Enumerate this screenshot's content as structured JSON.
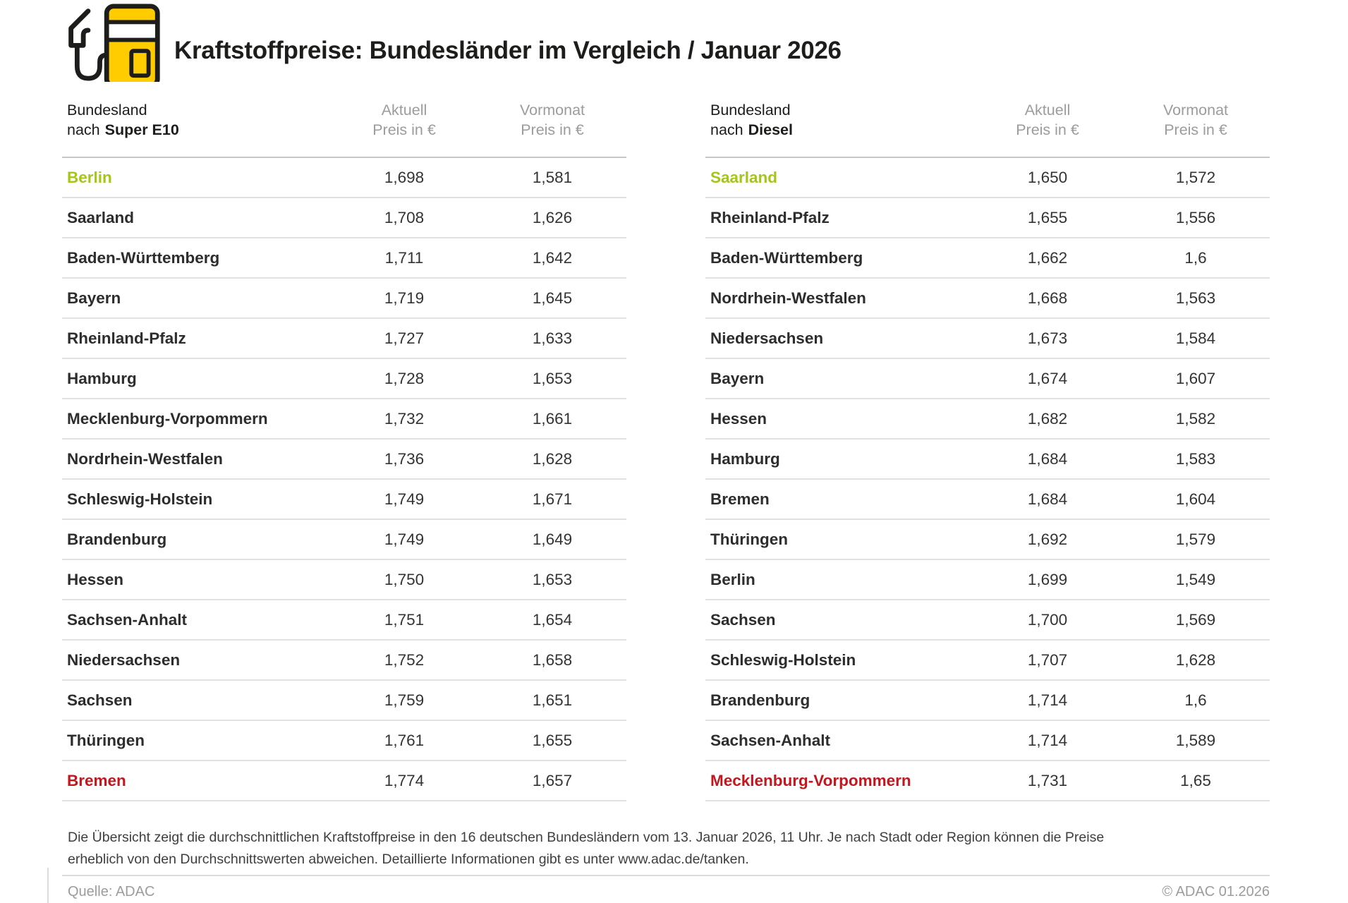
{
  "header": {
    "title": "Kraftstoffpreise: Bundesländer im Vergleich / Januar 2026"
  },
  "icons": {
    "brand": "fuel-pump-icon"
  },
  "columns": {
    "current": {
      "line1": "Aktuell",
      "line2": "Preis in €"
    },
    "previous": {
      "line1": "Vormonat",
      "line2": "Preis in €"
    }
  },
  "chart_data": [
    {
      "type": "table",
      "title": "Bundesland nach Super E10",
      "row_header_line1": "Bundesland",
      "row_header_prefix": "nach",
      "fuel": "Super E10",
      "columns": [
        "Bundesland",
        "Aktuell Preis in €",
        "Vormonat Preis in €"
      ],
      "rows": [
        {
          "name": "Berlin",
          "current": "1,698",
          "previous": "1,581",
          "highlight": "green"
        },
        {
          "name": "Saarland",
          "current": "1,708",
          "previous": "1,626",
          "highlight": null
        },
        {
          "name": "Baden-Württemberg",
          "current": "1,711",
          "previous": "1,642",
          "highlight": null
        },
        {
          "name": "Bayern",
          "current": "1,719",
          "previous": "1,645",
          "highlight": null
        },
        {
          "name": "Rheinland-Pfalz",
          "current": "1,727",
          "previous": "1,633",
          "highlight": null
        },
        {
          "name": "Hamburg",
          "current": "1,728",
          "previous": "1,653",
          "highlight": null
        },
        {
          "name": "Mecklenburg-Vorpommern",
          "current": "1,732",
          "previous": "1,661",
          "highlight": null
        },
        {
          "name": "Nordrhein-Westfalen",
          "current": "1,736",
          "previous": "1,628",
          "highlight": null
        },
        {
          "name": "Schleswig-Holstein",
          "current": "1,749",
          "previous": "1,671",
          "highlight": null
        },
        {
          "name": "Brandenburg",
          "current": "1,749",
          "previous": "1,649",
          "highlight": null
        },
        {
          "name": "Hessen",
          "current": "1,750",
          "previous": "1,653",
          "highlight": null
        },
        {
          "name": "Sachsen-Anhalt",
          "current": "1,751",
          "previous": "1,654",
          "highlight": null
        },
        {
          "name": "Niedersachsen",
          "current": "1,752",
          "previous": "1,658",
          "highlight": null
        },
        {
          "name": "Sachsen",
          "current": "1,759",
          "previous": "1,651",
          "highlight": null
        },
        {
          "name": "Thüringen",
          "current": "1,761",
          "previous": "1,655",
          "highlight": null
        },
        {
          "name": "Bremen",
          "current": "1,774",
          "previous": "1,657",
          "highlight": "red"
        }
      ]
    },
    {
      "type": "table",
      "title": "Bundesland nach Diesel",
      "row_header_line1": "Bundesland",
      "row_header_prefix": "nach",
      "fuel": "Diesel",
      "columns": [
        "Bundesland",
        "Aktuell Preis in €",
        "Vormonat Preis in €"
      ],
      "rows": [
        {
          "name": "Saarland",
          "current": "1,650",
          "previous": "1,572",
          "highlight": "green"
        },
        {
          "name": "Rheinland-Pfalz",
          "current": "1,655",
          "previous": "1,556",
          "highlight": null
        },
        {
          "name": "Baden-Württemberg",
          "current": "1,662",
          "previous": "1,6",
          "highlight": null
        },
        {
          "name": "Nordrhein-Westfalen",
          "current": "1,668",
          "previous": "1,563",
          "highlight": null
        },
        {
          "name": "Niedersachsen",
          "current": "1,673",
          "previous": "1,584",
          "highlight": null
        },
        {
          "name": "Bayern",
          "current": "1,674",
          "previous": "1,607",
          "highlight": null
        },
        {
          "name": "Hessen",
          "current": "1,682",
          "previous": "1,582",
          "highlight": null
        },
        {
          "name": "Hamburg",
          "current": "1,684",
          "previous": "1,583",
          "highlight": null
        },
        {
          "name": "Bremen",
          "current": "1,684",
          "previous": "1,604",
          "highlight": null
        },
        {
          "name": "Thüringen",
          "current": "1,692",
          "previous": "1,579",
          "highlight": null
        },
        {
          "name": "Berlin",
          "current": "1,699",
          "previous": "1,549",
          "highlight": null
        },
        {
          "name": "Sachsen",
          "current": "1,700",
          "previous": "1,569",
          "highlight": null
        },
        {
          "name": "Schleswig-Holstein",
          "current": "1,707",
          "previous": "1,628",
          "highlight": null
        },
        {
          "name": "Brandenburg",
          "current": "1,714",
          "previous": "1,6",
          "highlight": null
        },
        {
          "name": "Sachsen-Anhalt",
          "current": "1,714",
          "previous": "1,589",
          "highlight": null
        },
        {
          "name": "Mecklenburg-Vorpommern",
          "current": "1,731",
          "previous": "1,65",
          "highlight": "red"
        }
      ]
    }
  ],
  "footnote": {
    "text": "Die Übersicht zeigt die durchschnittlichen Kraftstoffpreise in den 16 deutschen Bundesländern vom 13. Januar 2026, 11 Uhr. Je nach Stadt oder Region können die Preise erheblich von den Durchschnittswerten abweichen. Detaillierte Informationen gibt es unter www.adac.de/tanken."
  },
  "footer": {
    "source": "Quelle: ADAC",
    "copyright": "© ADAC 01.2026"
  },
  "colors": {
    "adac_yellow": "#ffcc00",
    "highlight_green": "#a3c617",
    "highlight_red": "#c4161d"
  }
}
